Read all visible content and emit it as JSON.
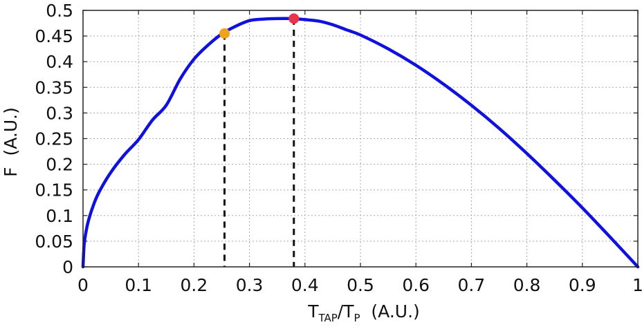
{
  "chart_data": {
    "type": "line",
    "title": "",
    "ylabel": "F  (A.U.)",
    "xlabel": {
      "main": "T",
      "sub1": "TAP",
      "slash": "/T",
      "sub2": "P",
      "units": "  (A.U.)"
    },
    "xlim": [
      0,
      1
    ],
    "ylim": [
      0,
      0.5
    ],
    "x_ticks": [
      "0",
      "0.1",
      "0.2",
      "0.3",
      "0.4",
      "0.5",
      "0.6",
      "0.7",
      "0.8",
      "0.9",
      "1"
    ],
    "y_ticks": [
      "0",
      "0.05",
      "0.1",
      "0.15",
      "0.2",
      "0.25",
      "0.3",
      "0.35",
      "0.4",
      "0.45",
      "0.5"
    ],
    "grid": true,
    "series": [
      {
        "color": "#1111dd",
        "x": [
          0,
          0.002,
          0.005,
          0.01,
          0.02,
          0.03,
          0.05,
          0.075,
          0.1,
          0.125,
          0.15,
          0.175,
          0.2,
          0.225,
          0.25,
          0.275,
          0.3,
          0.325,
          0.35,
          0.375,
          0.4,
          0.425,
          0.45,
          0.475,
          0.5,
          0.55,
          0.6,
          0.65,
          0.7,
          0.75,
          0.8,
          0.85,
          0.9,
          0.95,
          1.0
        ],
        "y": [
          0,
          0.043,
          0.066,
          0.091,
          0.124,
          0.148,
          0.184,
          0.219,
          0.248,
          0.286,
          0.315,
          0.366,
          0.405,
          0.432,
          0.454,
          0.469,
          0.48,
          0.483,
          0.484,
          0.484,
          0.482,
          0.479,
          0.472,
          0.462,
          0.452,
          0.425,
          0.393,
          0.356,
          0.315,
          0.27,
          0.221,
          0.169,
          0.115,
          0.058,
          0
        ]
      }
    ],
    "markers": [
      {
        "x": 0.255,
        "y": 0.455,
        "color": "#f0a21a"
      },
      {
        "x": 0.38,
        "y": 0.484,
        "color": "#e8334a"
      }
    ]
  }
}
